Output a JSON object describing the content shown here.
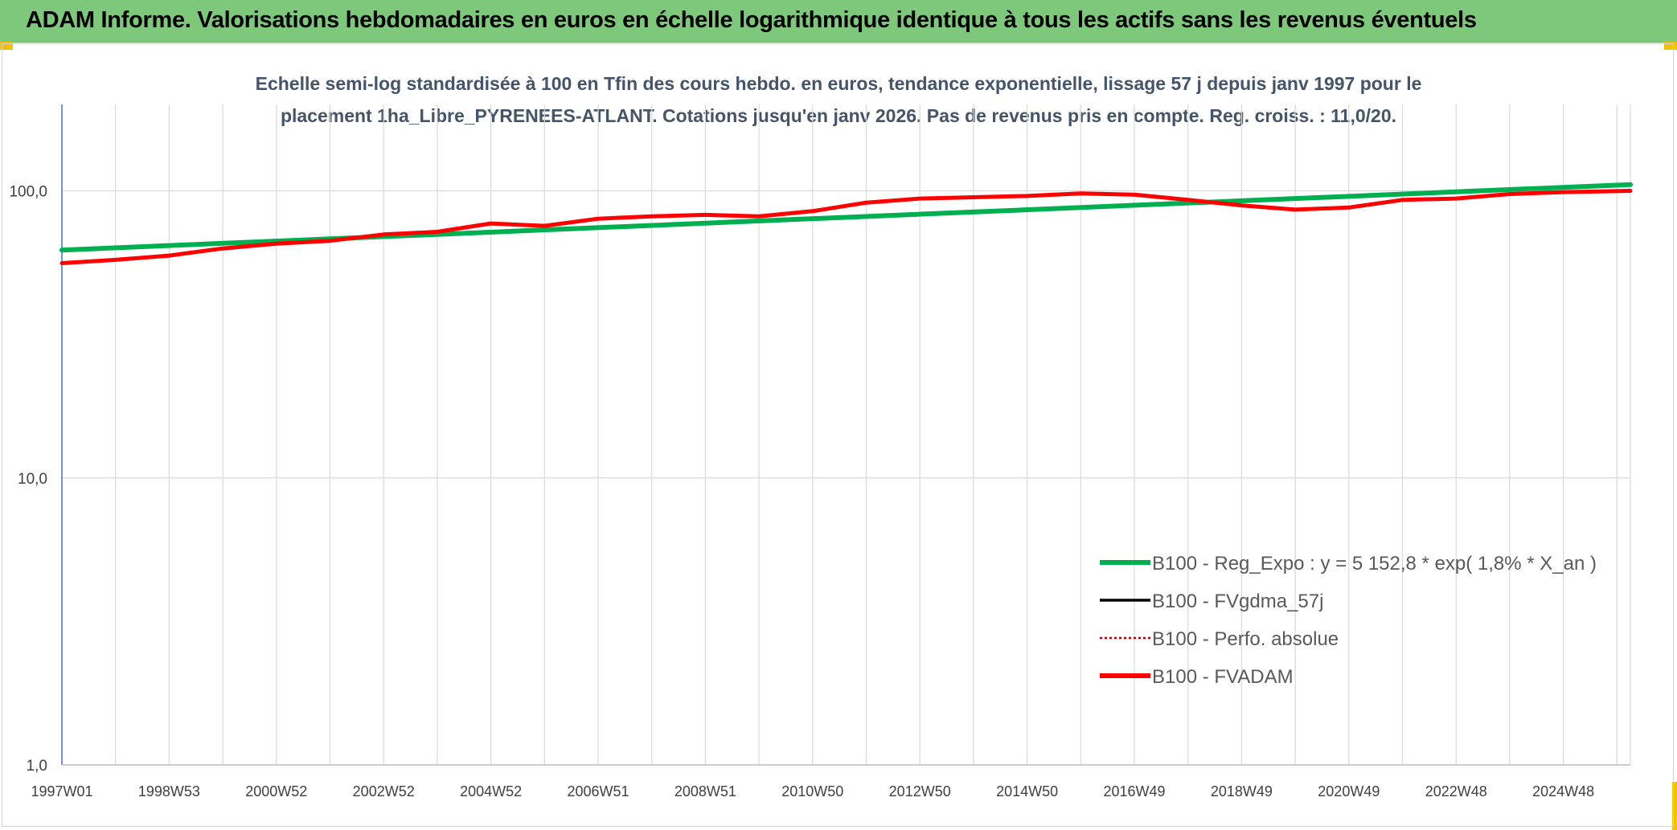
{
  "header": {
    "title": "ADAM Informe. Valorisations hebdomadaires en euros en échelle logarithmique identique à tous les actifs sans les revenus éventuels"
  },
  "colors": {
    "header_bg": "#7ec87c",
    "corner_accent": "#f2c200",
    "reg_expo": "#00b050",
    "fvgdma": "#000000",
    "perfo": "#c00000",
    "fvadam": "#ff0000"
  },
  "chart_data": {
    "type": "line",
    "title_lines": [
      "Echelle semi-log standardisée à 100 en Tfin des cours hebdo. en euros, tendance exponentielle, lissage 57 j depuis janv 1997 pour le",
      "placement 1ha_Libre_PYRENEES-ATLANT. Cotations jusqu'en janv 2026. Pas de revenus pris en compte. Reg. croiss. : 11,0/20."
    ],
    "y_scale": "log",
    "ylim": [
      1,
      200
    ],
    "yticks": [
      {
        "value": 100,
        "label": "100,0"
      },
      {
        "value": 10,
        "label": "10,0"
      },
      {
        "value": 1,
        "label": "1,0"
      }
    ],
    "xlim": [
      1997.0,
      2026.25
    ],
    "xtick_labels": [
      "1997W01",
      "1998W53",
      "2000W52",
      "2002W52",
      "2004W52",
      "2006W51",
      "2008W51",
      "2010W50",
      "2012W50",
      "2014W50",
      "2016W49",
      "2018W49",
      "2020W49",
      "2022W48",
      "2024W48"
    ],
    "grid": "vertical",
    "legend_position": "right",
    "series": [
      {
        "name": "B100 - Reg_Expo : y = 5 152,8 * exp( 1,8% *  X_an )",
        "color": "#00b050",
        "style": "solid",
        "points": [
          [
            1997.0,
            62.2
          ],
          [
            2026.25,
            105.2
          ]
        ]
      },
      {
        "name": "B100 - FVgdma_57j",
        "color": "#000000",
        "style": "solid",
        "points": [
          [
            1997.0,
            56
          ],
          [
            1998.0,
            57.5
          ],
          [
            1999.0,
            59.5
          ],
          [
            2000.0,
            63
          ],
          [
            2001.0,
            65.5
          ],
          [
            2002.0,
            67
          ],
          [
            2003.0,
            70.5
          ],
          [
            2004.0,
            72
          ],
          [
            2005.0,
            77
          ],
          [
            2006.0,
            75.5
          ],
          [
            2007.0,
            80
          ],
          [
            2008.0,
            81.5
          ],
          [
            2009.0,
            82.5
          ],
          [
            2010.0,
            81.5
          ],
          [
            2011.0,
            85
          ],
          [
            2012.0,
            91
          ],
          [
            2013.0,
            94
          ],
          [
            2014.0,
            95
          ],
          [
            2015.0,
            96
          ],
          [
            2016.0,
            98
          ],
          [
            2017.0,
            97
          ],
          [
            2018.0,
            93
          ],
          [
            2019.0,
            89
          ],
          [
            2020.0,
            86
          ],
          [
            2021.0,
            87.5
          ],
          [
            2022.0,
            93
          ],
          [
            2023.0,
            94
          ],
          [
            2024.0,
            97.5
          ],
          [
            2025.0,
            99
          ],
          [
            2026.25,
            100
          ]
        ]
      },
      {
        "name": "B100 - Perfo. absolue",
        "color": "#c00000",
        "style": "dotted",
        "points": [
          [
            1997.0,
            56
          ],
          [
            1998.0,
            57.5
          ],
          [
            1999.0,
            59.5
          ],
          [
            2000.0,
            63
          ],
          [
            2001.0,
            65.5
          ],
          [
            2002.0,
            67
          ],
          [
            2003.0,
            70.5
          ],
          [
            2004.0,
            72
          ],
          [
            2005.0,
            77
          ],
          [
            2006.0,
            75.5
          ],
          [
            2007.0,
            80
          ],
          [
            2008.0,
            81.5
          ],
          [
            2009.0,
            82.5
          ],
          [
            2010.0,
            81.5
          ],
          [
            2011.0,
            85
          ],
          [
            2012.0,
            91
          ],
          [
            2013.0,
            94
          ],
          [
            2014.0,
            95
          ],
          [
            2015.0,
            96
          ],
          [
            2016.0,
            98
          ],
          [
            2017.0,
            97
          ],
          [
            2018.0,
            93
          ],
          [
            2019.0,
            89
          ],
          [
            2020.0,
            86
          ],
          [
            2021.0,
            87.5
          ],
          [
            2022.0,
            93
          ],
          [
            2023.0,
            94
          ],
          [
            2024.0,
            97.5
          ],
          [
            2025.0,
            99
          ],
          [
            2026.25,
            100
          ]
        ]
      },
      {
        "name": "B100 - FVADAM",
        "color": "#ff0000",
        "style": "solid",
        "points": [
          [
            1997.0,
            56
          ],
          [
            1998.0,
            57.5
          ],
          [
            1999.0,
            59.5
          ],
          [
            2000.0,
            63
          ],
          [
            2001.0,
            65.5
          ],
          [
            2002.0,
            67
          ],
          [
            2003.0,
            70.5
          ],
          [
            2004.0,
            72
          ],
          [
            2005.0,
            77
          ],
          [
            2006.0,
            75.5
          ],
          [
            2007.0,
            80
          ],
          [
            2008.0,
            81.5
          ],
          [
            2009.0,
            82.5
          ],
          [
            2010.0,
            81.5
          ],
          [
            2011.0,
            85
          ],
          [
            2012.0,
            91
          ],
          [
            2013.0,
            94
          ],
          [
            2014.0,
            95
          ],
          [
            2015.0,
            96
          ],
          [
            2016.0,
            98
          ],
          [
            2017.0,
            97
          ],
          [
            2018.0,
            93
          ],
          [
            2019.0,
            89
          ],
          [
            2020.0,
            86
          ],
          [
            2021.0,
            87.5
          ],
          [
            2022.0,
            93
          ],
          [
            2023.0,
            94
          ],
          [
            2024.0,
            97.5
          ],
          [
            2025.0,
            99
          ],
          [
            2026.25,
            100
          ]
        ]
      }
    ]
  }
}
